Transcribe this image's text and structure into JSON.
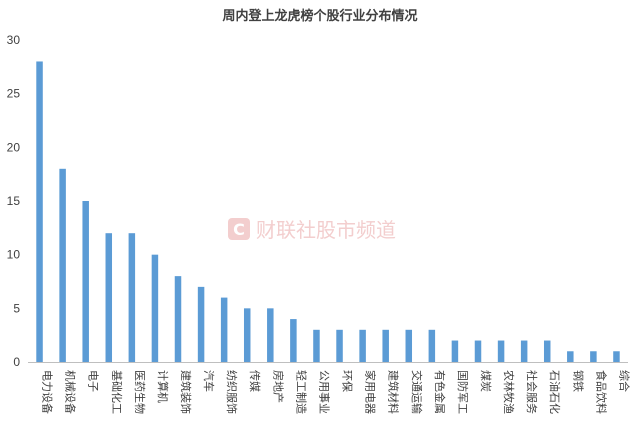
{
  "chart_data": {
    "type": "bar",
    "title": "周内登上龙虎榜个股行业分布情况",
    "categories": [
      "电力设备",
      "机械设备",
      "电子",
      "基础化工",
      "医药生物",
      "计算机",
      "建筑装饰",
      "汽车",
      "纺织服饰",
      "传媒",
      "房地产",
      "轻工制造",
      "公用事业",
      "环保",
      "家用电器",
      "建筑材料",
      "交通运输",
      "有色金属",
      "国防军工",
      "煤炭",
      "农林牧渔",
      "社会服务",
      "石油石化",
      "钢铁",
      "食品饮料",
      "综合"
    ],
    "values": [
      28,
      18,
      15,
      12,
      12,
      10,
      8,
      7,
      6,
      5,
      5,
      4,
      3,
      3,
      3,
      3,
      3,
      3,
      2,
      2,
      2,
      2,
      2,
      1,
      1,
      1
    ],
    "ylim": [
      0,
      30
    ],
    "yticks": [
      0,
      5,
      10,
      15,
      20,
      25,
      30
    ],
    "xlabel": "",
    "ylabel": "",
    "legend": "none",
    "grid": false
  },
  "colors": {
    "bar": "#5b9bd5",
    "axis": "#bfbfbf",
    "watermark": "#f2c9c9"
  },
  "watermark": {
    "icon": "c-logo-icon",
    "text": "财联社股市频道"
  }
}
